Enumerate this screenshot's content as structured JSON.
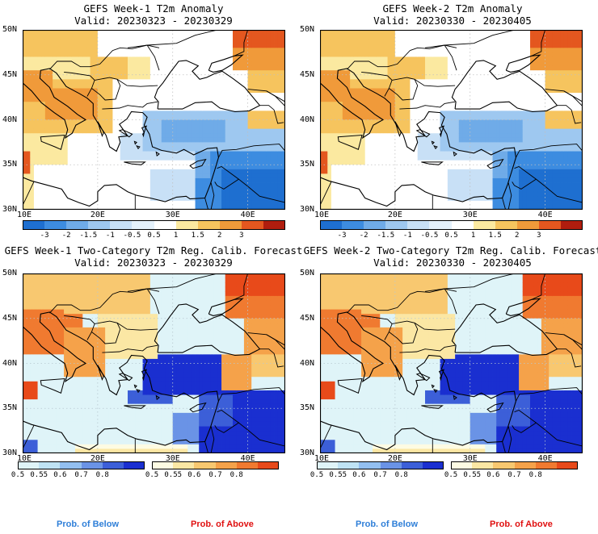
{
  "panels": [
    {
      "title": "GEFS Week-1 T2m Anomaly",
      "valid": "Valid: 20230323 - 20230329",
      "kind": "anomaly"
    },
    {
      "title": "GEFS Week-2 T2m Anomaly",
      "valid": "Valid: 20230330 - 20230405",
      "kind": "anomaly"
    },
    {
      "title": "GEFS Week-1 Two-Category T2m Reg. Calib. Forecast",
      "valid": "Valid: 20230323 - 20230329",
      "kind": "prob"
    },
    {
      "title": "GEFS Week-2 Two-Category T2m Reg. Calib. Forecast",
      "valid": "Valid: 20230330 - 20230405",
      "kind": "prob"
    }
  ],
  "axes": {
    "lat_labels": [
      "30N",
      "35N",
      "40N",
      "45N",
      "50N"
    ],
    "lon_labels": [
      "10E",
      "20E",
      "30E",
      "40E"
    ]
  },
  "anomaly_colorbar": {
    "labels": [
      "-3",
      "-2",
      "-1.5",
      "-1",
      "-0.5",
      "0.5",
      "1",
      "1.5",
      "2",
      "3"
    ],
    "colors": [
      "#1e6fd0",
      "#3d8ce0",
      "#6fabe8",
      "#9ec8f0",
      "#c8e0f6",
      "#e4f1fb",
      "#ffffff",
      "#fbe9a0",
      "#f6c45e",
      "#f09a3a",
      "#e4571f",
      "#b01d0e"
    ]
  },
  "prob_colorbars": {
    "below": {
      "labels": [
        "0.5",
        "0.55",
        "0.6",
        "0.7",
        "0.8"
      ],
      "colors": [
        "#dff4f8",
        "#bfe3f4",
        "#93bff0",
        "#6a93e6",
        "#3c5fd8",
        "#1a2fd0"
      ],
      "caption": "Prob. of Below",
      "caption_color": "#2f7fd8"
    },
    "above": {
      "labels": [
        "0.5",
        "0.55",
        "0.6",
        "0.7",
        "0.8"
      ],
      "colors": [
        "#fdfbe3",
        "#fbe7a4",
        "#f8c870",
        "#f5a24a",
        "#f07a30",
        "#e84a1a"
      ],
      "caption": "Prob. of Above",
      "caption_color": "#e01010"
    }
  }
}
